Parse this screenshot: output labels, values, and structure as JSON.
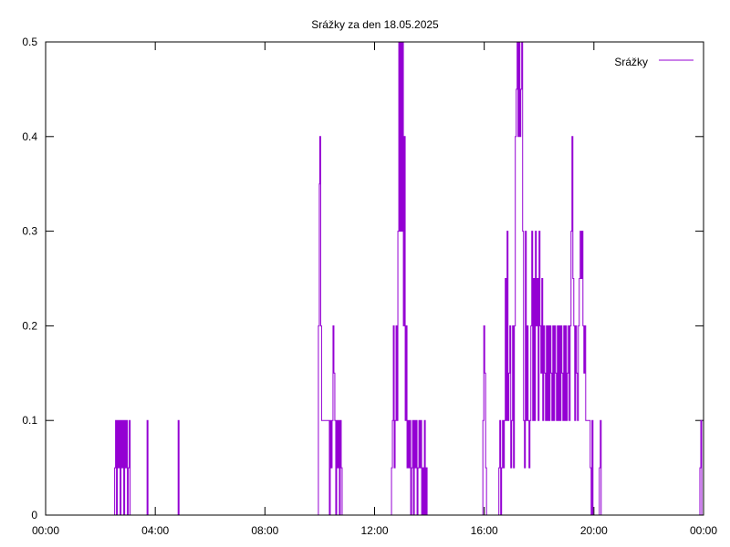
{
  "chart_data": {
    "type": "line",
    "title": "Srážky za den 18.05.2025",
    "xlabel": "",
    "ylabel": "",
    "xlim": [
      "00:00",
      "24:00"
    ],
    "ylim": [
      0,
      0.5
    ],
    "xticks": [
      "00:00",
      "04:00",
      "08:00",
      "12:00",
      "16:00",
      "20:00",
      "00:00"
    ],
    "yticks": [
      "0",
      "0.1",
      "0.2",
      "0.3",
      "0.4",
      "0.5"
    ],
    "grid": false,
    "legend_position": "top-right",
    "series": [
      {
        "name": "Srážky",
        "color": "#9400d3",
        "points": [
          [
            "00:00",
            0
          ],
          [
            "02:30",
            0
          ],
          [
            "02:31",
            0.05
          ],
          [
            "02:33",
            0.1
          ],
          [
            "02:35",
            0
          ],
          [
            "02:37",
            0.1
          ],
          [
            "02:39",
            0.05
          ],
          [
            "02:41",
            0.1
          ],
          [
            "02:43",
            0
          ],
          [
            "02:45",
            0.1
          ],
          [
            "02:47",
            0.05
          ],
          [
            "02:49",
            0.1
          ],
          [
            "02:51",
            0
          ],
          [
            "02:53",
            0.1
          ],
          [
            "02:55",
            0.05
          ],
          [
            "02:57",
            0.1
          ],
          [
            "02:59",
            0
          ],
          [
            "03:01",
            0.05
          ],
          [
            "03:03",
            0.1
          ],
          [
            "03:05",
            0
          ],
          [
            "03:40",
            0
          ],
          [
            "03:42",
            0.1
          ],
          [
            "03:44",
            0
          ],
          [
            "04:48",
            0
          ],
          [
            "04:50",
            0.1
          ],
          [
            "04:52",
            0
          ],
          [
            "09:55",
            0
          ],
          [
            "09:57",
            0.2
          ],
          [
            "09:59",
            0.35
          ],
          [
            "10:00",
            0.4
          ],
          [
            "10:02",
            0.2
          ],
          [
            "10:04",
            0.1
          ],
          [
            "10:20",
            0.1
          ],
          [
            "10:21",
            0
          ],
          [
            "10:23",
            0.1
          ],
          [
            "10:25",
            0.05
          ],
          [
            "10:27",
            0.1
          ],
          [
            "10:29",
            0.2
          ],
          [
            "10:31",
            0.15
          ],
          [
            "10:33",
            0.1
          ],
          [
            "10:35",
            0
          ],
          [
            "10:37",
            0.1
          ],
          [
            "10:39",
            0.05
          ],
          [
            "10:41",
            0.1
          ],
          [
            "10:43",
            0
          ],
          [
            "10:45",
            0.1
          ],
          [
            "10:47",
            0.05
          ],
          [
            "10:49",
            0
          ],
          [
            "12:35",
            0
          ],
          [
            "12:37",
            0.05
          ],
          [
            "12:39",
            0.1
          ],
          [
            "12:41",
            0.2
          ],
          [
            "12:43",
            0.05
          ],
          [
            "12:45",
            0.1
          ],
          [
            "12:47",
            0.2
          ],
          [
            "12:49",
            0.1
          ],
          [
            "12:51",
            0.3
          ],
          [
            "12:53",
            0.5
          ],
          [
            "12:55",
            0.3
          ],
          [
            "12:57",
            0.5
          ],
          [
            "12:59",
            0.3
          ],
          [
            "13:01",
            0.5
          ],
          [
            "13:03",
            0.2
          ],
          [
            "13:05",
            0.4
          ],
          [
            "13:07",
            0.1
          ],
          [
            "13:09",
            0.2
          ],
          [
            "13:11",
            0.05
          ],
          [
            "13:13",
            0.1
          ],
          [
            "13:15",
            0.05
          ],
          [
            "13:17",
            0.1
          ],
          [
            "13:19",
            0
          ],
          [
            "13:21",
            0.05
          ],
          [
            "13:23",
            0.1
          ],
          [
            "13:25",
            0
          ],
          [
            "13:27",
            0.1
          ],
          [
            "13:29",
            0.05
          ],
          [
            "13:31",
            0.1
          ],
          [
            "13:33",
            0
          ],
          [
            "13:35",
            0.05
          ],
          [
            "13:37",
            0.1
          ],
          [
            "13:39",
            0.05
          ],
          [
            "13:41",
            0.1
          ],
          [
            "13:43",
            0
          ],
          [
            "13:45",
            0.05
          ],
          [
            "13:47",
            0
          ],
          [
            "13:49",
            0.1
          ],
          [
            "13:51",
            0
          ],
          [
            "13:53",
            0.05
          ],
          [
            "13:55",
            0
          ],
          [
            "15:55",
            0
          ],
          [
            "15:57",
            0.1
          ],
          [
            "15:59",
            0.2
          ],
          [
            "16:01",
            0.15
          ],
          [
            "16:03",
            0.05
          ],
          [
            "16:05",
            0
          ],
          [
            "16:30",
            0
          ],
          [
            "16:32",
            0.05
          ],
          [
            "16:34",
            0.1
          ],
          [
            "16:36",
            0
          ],
          [
            "16:38",
            0.05
          ],
          [
            "16:40",
            0.1
          ],
          [
            "16:42",
            0.05
          ],
          [
            "16:44",
            0.1
          ],
          [
            "16:46",
            0.25
          ],
          [
            "16:48",
            0.1
          ],
          [
            "16:50",
            0.3
          ],
          [
            "16:52",
            0.1
          ],
          [
            "16:54",
            0.15
          ],
          [
            "16:56",
            0.2
          ],
          [
            "16:58",
            0.05
          ],
          [
            "17:00",
            0.1
          ],
          [
            "17:02",
            0.2
          ],
          [
            "17:04",
            0.05
          ],
          [
            "17:06",
            0.2
          ],
          [
            "17:08",
            0.4
          ],
          [
            "17:10",
            0.45
          ],
          [
            "17:12",
            0.5
          ],
          [
            "17:14",
            0.4
          ],
          [
            "17:16",
            0.5
          ],
          [
            "17:18",
            0.4
          ],
          [
            "17:20",
            0.45
          ],
          [
            "17:22",
            0.5
          ],
          [
            "17:24",
            0.3
          ],
          [
            "17:26",
            0.1
          ],
          [
            "17:28",
            0.05
          ],
          [
            "17:30",
            0.3
          ],
          [
            "17:32",
            0.1
          ],
          [
            "17:34",
            0.2
          ],
          [
            "17:36",
            0.1
          ],
          [
            "17:38",
            0.05
          ],
          [
            "17:40",
            0.1
          ],
          [
            "17:42",
            0.2
          ],
          [
            "17:44",
            0.3
          ],
          [
            "17:46",
            0.1
          ],
          [
            "17:48",
            0.25
          ],
          [
            "17:50",
            0.1
          ],
          [
            "17:52",
            0.3
          ],
          [
            "17:54",
            0.2
          ],
          [
            "17:56",
            0.25
          ],
          [
            "17:58",
            0.1
          ],
          [
            "18:00",
            0.3
          ],
          [
            "18:02",
            0.2
          ],
          [
            "18:04",
            0.15
          ],
          [
            "18:06",
            0.25
          ],
          [
            "18:08",
            0.1
          ],
          [
            "18:10",
            0.2
          ],
          [
            "18:12",
            0.15
          ],
          [
            "18:14",
            0.1
          ],
          [
            "18:16",
            0.2
          ],
          [
            "18:18",
            0.1
          ],
          [
            "18:20",
            0.2
          ],
          [
            "18:22",
            0.1
          ],
          [
            "18:24",
            0.2
          ],
          [
            "18:26",
            0.15
          ],
          [
            "18:28",
            0.1
          ],
          [
            "18:30",
            0.2
          ],
          [
            "18:32",
            0.1
          ],
          [
            "18:34",
            0.2
          ],
          [
            "18:36",
            0.15
          ],
          [
            "18:38",
            0.1
          ],
          [
            "18:40",
            0.2
          ],
          [
            "18:42",
            0.1
          ],
          [
            "18:44",
            0.2
          ],
          [
            "18:46",
            0.1
          ],
          [
            "18:48",
            0.2
          ],
          [
            "18:50",
            0.15
          ],
          [
            "18:52",
            0.1
          ],
          [
            "18:54",
            0.2
          ],
          [
            "18:56",
            0.1
          ],
          [
            "18:58",
            0.2
          ],
          [
            "19:00",
            0.1
          ],
          [
            "19:02",
            0.15
          ],
          [
            "19:04",
            0.2
          ],
          [
            "19:06",
            0.1
          ],
          [
            "19:08",
            0.2
          ],
          [
            "19:10",
            0.3
          ],
          [
            "19:12",
            0.4
          ],
          [
            "19:14",
            0.25
          ],
          [
            "19:16",
            0.2
          ],
          [
            "19:18",
            0.1
          ],
          [
            "19:20",
            0.2
          ],
          [
            "19:22",
            0.15
          ],
          [
            "19:24",
            0.1
          ],
          [
            "19:26",
            0.2
          ],
          [
            "19:28",
            0.25
          ],
          [
            "19:30",
            0.3
          ],
          [
            "19:32",
            0.25
          ],
          [
            "19:34",
            0.3
          ],
          [
            "19:36",
            0.2
          ],
          [
            "19:38",
            0.15
          ],
          [
            "19:40",
            0.2
          ],
          [
            "19:42",
            0.1
          ],
          [
            "19:50",
            0.1
          ],
          [
            "19:52",
            0.05
          ],
          [
            "19:54",
            0
          ],
          [
            "19:56",
            0.1
          ],
          [
            "19:58",
            0
          ],
          [
            "20:10",
            0
          ],
          [
            "20:12",
            0.05
          ],
          [
            "20:14",
            0.1
          ],
          [
            "20:16",
            0
          ],
          [
            "23:50",
            0
          ],
          [
            "23:52",
            0.05
          ],
          [
            "23:54",
            0.1
          ],
          [
            "23:56",
            0
          ]
        ]
      }
    ]
  }
}
